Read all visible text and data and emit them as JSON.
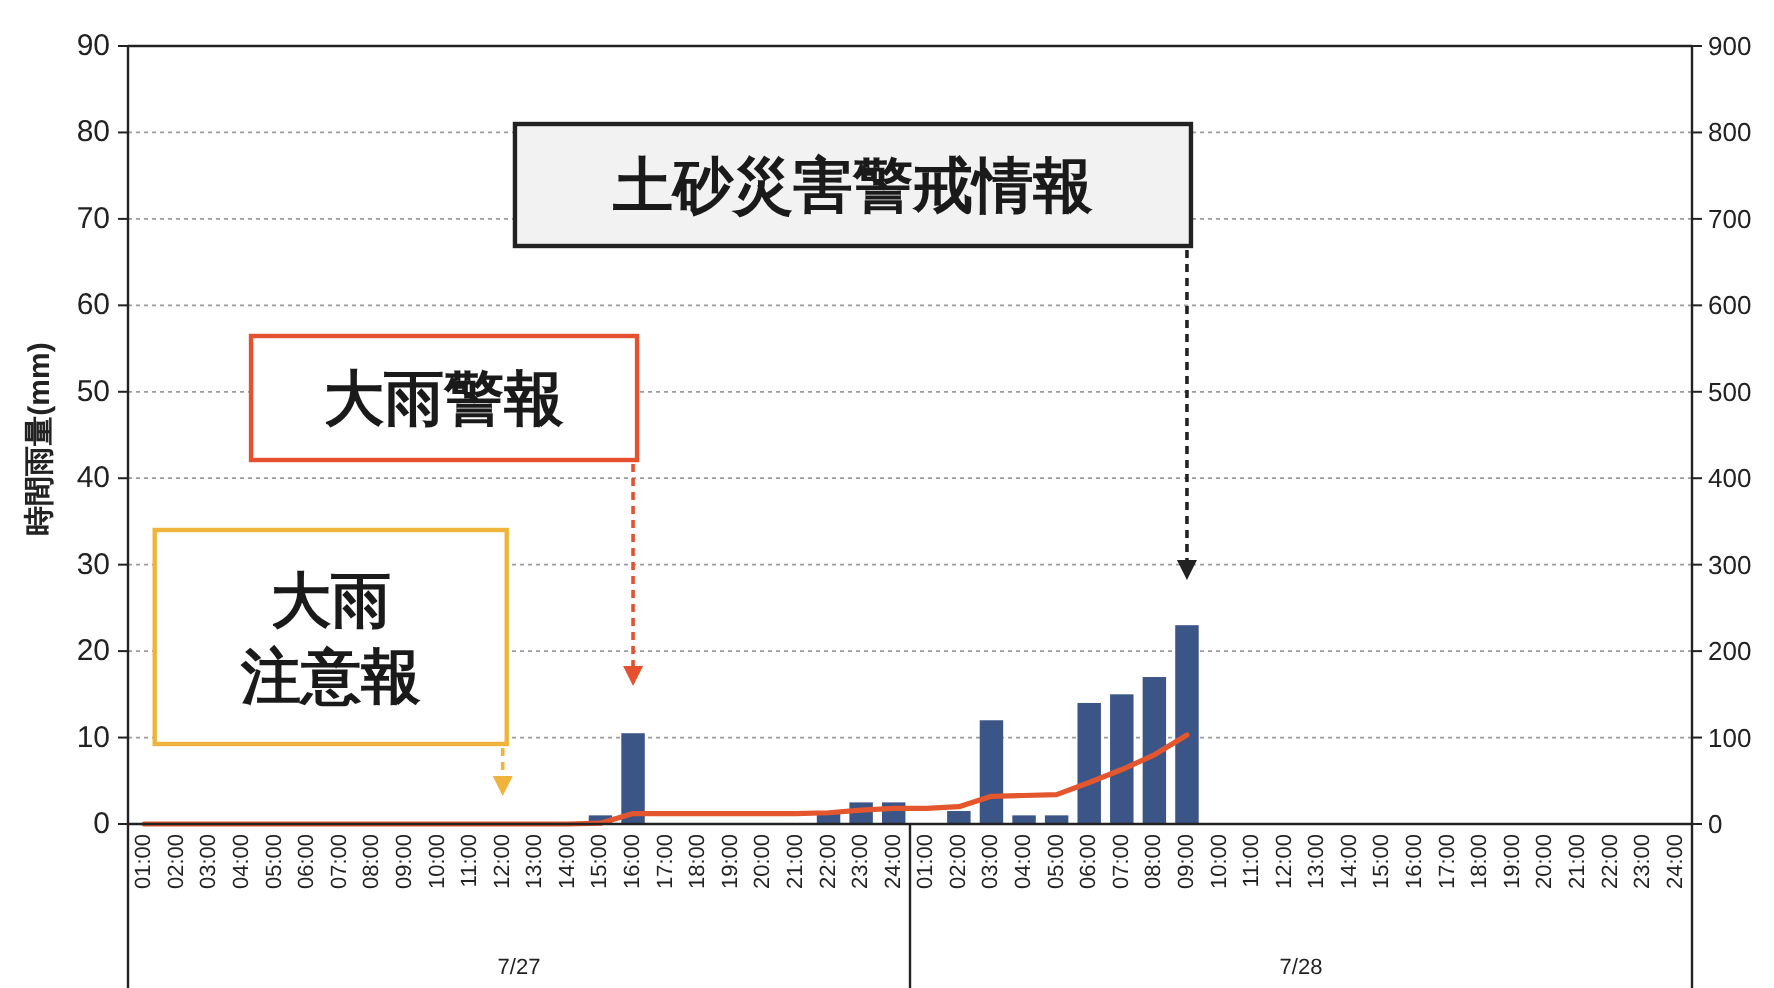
{
  "chart_data": {
    "type": "bar",
    "ylabel": "時間雨量(mm)",
    "categories": [
      "01:00",
      "02:00",
      "03:00",
      "04:00",
      "05:00",
      "06:00",
      "07:00",
      "08:00",
      "09:00",
      "10:00",
      "11:00",
      "12:00",
      "13:00",
      "14:00",
      "15:00",
      "16:00",
      "17:00",
      "18:00",
      "19:00",
      "20:00",
      "21:00",
      "22:00",
      "23:00",
      "24:00",
      "01:00",
      "02:00",
      "03:00",
      "04:00",
      "05:00",
      "06:00",
      "07:00",
      "08:00",
      "09:00",
      "10:00",
      "11:00",
      "12:00",
      "13:00",
      "14:00",
      "15:00",
      "16:00",
      "17:00",
      "18:00",
      "19:00",
      "20:00",
      "21:00",
      "22:00",
      "23:00",
      "24:00"
    ],
    "ylim": [
      0,
      90
    ],
    "yticks": [
      0,
      10,
      20,
      30,
      40,
      50,
      60,
      70,
      80,
      90
    ],
    "y2lim": [
      0,
      900
    ],
    "y2ticks": [
      0,
      100,
      200,
      300,
      400,
      500,
      600,
      700,
      800,
      900
    ],
    "grid": "y",
    "series": [
      {
        "color": "#3b5587",
        "values": [
          0,
          0,
          0,
          0,
          0,
          0,
          0,
          0,
          0,
          0,
          0,
          0,
          0,
          0,
          1,
          10.5,
          0,
          0,
          0,
          0,
          0,
          1.5,
          2.5,
          2.5,
          0,
          1.5,
          12,
          1,
          1,
          14,
          15,
          17,
          23,
          null,
          null,
          null,
          null,
          null,
          null,
          null,
          null,
          null,
          null,
          null,
          null,
          null,
          null,
          null
        ]
      },
      {
        "type": "line",
        "axis": "y2",
        "color": "#e4572e",
        "values": [
          0,
          0,
          0,
          0,
          0,
          0,
          0,
          0,
          0,
          0,
          0,
          0,
          0,
          0,
          1,
          12,
          12,
          12,
          12,
          12,
          12,
          13,
          16,
          18,
          18,
          20,
          32,
          33,
          34,
          48,
          63,
          80,
          103,
          null,
          null,
          null,
          null,
          null,
          null,
          null,
          null,
          null,
          null,
          null,
          null,
          null,
          null,
          null
        ]
      }
    ],
    "annotations": [
      "大雨注意報",
      "大雨警報",
      "土砂災害警戒情報",
      "7/27",
      "7/28"
    ]
  }
}
